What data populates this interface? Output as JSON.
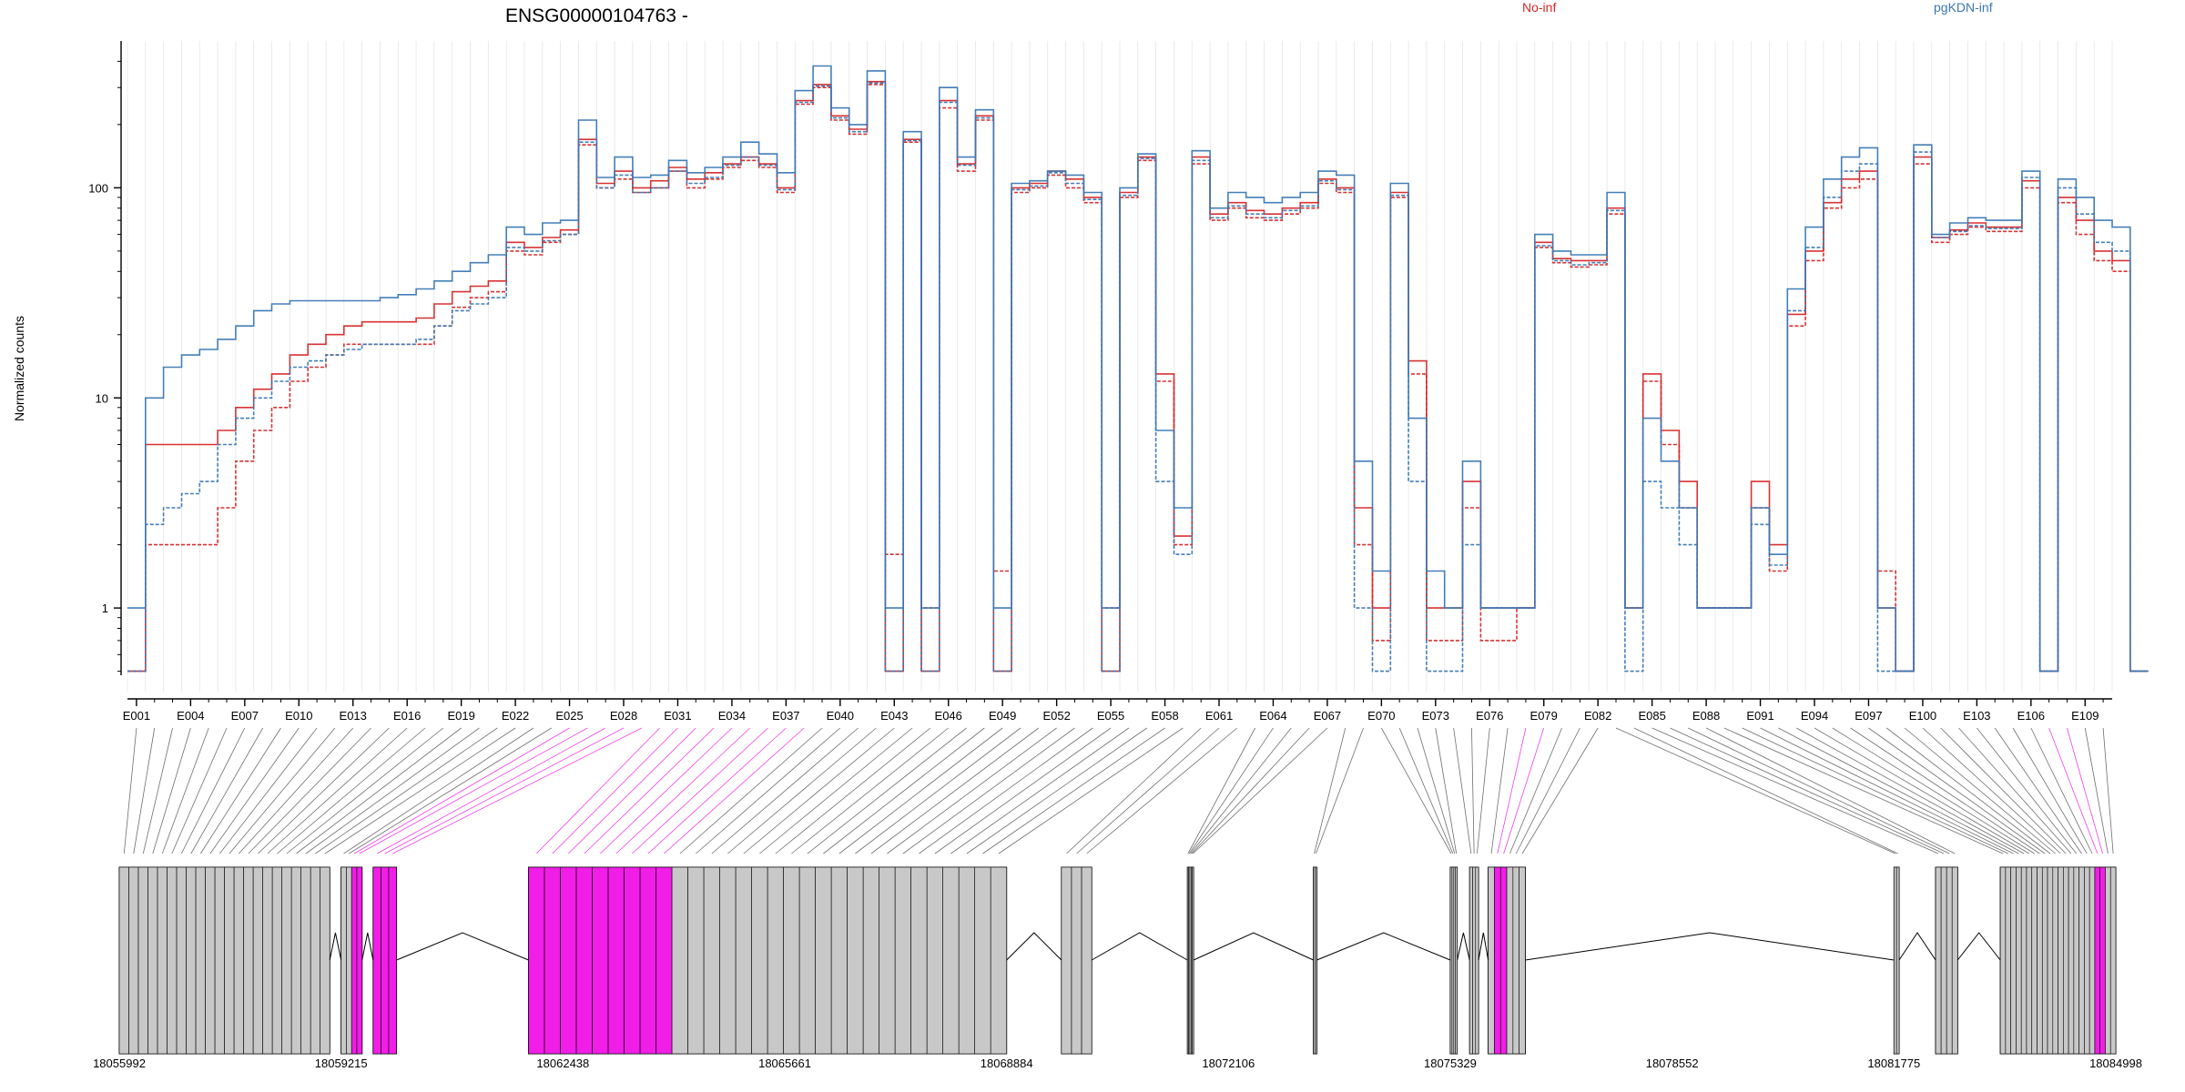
{
  "title": "ENSG00000104763 -",
  "legend": [
    {
      "name": "No-inf",
      "color": "#d62728"
    },
    {
      "name": "pgKDN-inf",
      "color": "#3a78b5"
    }
  ],
  "ylabel": "Normalized counts",
  "colors": {
    "highlight": "#f01ee6",
    "exon_gray": "#c8c8c8",
    "grid": "#e6e6e6"
  },
  "chart_data": {
    "type": "line",
    "title": "ENSG00000104763 -",
    "ylabel": "Normalized counts",
    "yscale": "log",
    "yticks": [
      1,
      10,
      100
    ],
    "ytick_labels": [
      "1",
      "10",
      "100"
    ],
    "ylim": [
      0.4,
      500
    ],
    "exon_count": 110,
    "exon_tick_labels": [
      "E001",
      "E004",
      "E007",
      "E010",
      "E013",
      "E016",
      "E019",
      "E022",
      "E025",
      "E028",
      "E031",
      "E034",
      "E037",
      "E040",
      "E043",
      "E046",
      "E049",
      "E052",
      "E055",
      "E058",
      "E061",
      "E064",
      "E067",
      "E070",
      "E073",
      "E076",
      "E079",
      "E082",
      "E085",
      "E088",
      "E091",
      "E094",
      "E097",
      "E100",
      "E103",
      "E106",
      "E109"
    ],
    "highlighted_exons": [
      24,
      25,
      26,
      27,
      28,
      29,
      30,
      31,
      32,
      33,
      34,
      35,
      36,
      37,
      77,
      78,
      106,
      107
    ],
    "genomic_axis": {
      "start": 18055992,
      "end": 18084998,
      "tick_labels": [
        "18055992",
        "18059215",
        "18062438",
        "18065661",
        "18068884",
        "18072106",
        "18075329",
        "18078552",
        "18081775",
        "18084998"
      ]
    },
    "series": [
      {
        "name": "No-inf",
        "group": "No-inf",
        "color": "#d62728",
        "values": [
          0.5,
          6,
          6,
          6,
          6,
          7,
          9,
          11,
          13,
          16,
          18,
          20,
          22,
          23,
          23,
          23,
          24,
          28,
          32,
          34,
          36,
          55,
          52,
          58,
          63,
          170,
          105,
          120,
          100,
          108,
          125,
          110,
          118,
          130,
          140,
          130,
          100,
          260,
          310,
          220,
          190,
          320,
          0.5,
          170,
          0.5,
          260,
          130,
          220,
          0.5,
          100,
          105,
          120,
          110,
          90,
          0.5,
          95,
          140,
          13,
          2.2,
          140,
          75,
          85,
          78,
          75,
          80,
          85,
          110,
          100,
          3,
          1,
          95,
          15,
          1,
          1,
          4,
          1,
          1,
          1,
          55,
          46,
          45,
          45,
          80,
          1,
          13,
          7,
          4,
          1,
          1,
          1,
          4,
          2,
          25,
          50,
          85,
          110,
          120,
          1,
          0.5,
          140,
          58,
          63,
          68,
          65,
          65,
          108,
          0.5,
          90,
          70,
          50,
          45,
          0.5
        ]
      },
      {
        "name": "No-inf",
        "group": "No-inf",
        "color": "#d62728",
        "values": [
          0.5,
          2,
          2,
          2,
          2,
          3,
          5,
          7,
          9,
          12,
          14,
          16,
          18,
          18,
          18,
          18,
          18,
          22,
          27,
          30,
          32,
          50,
          48,
          55,
          60,
          160,
          100,
          110,
          95,
          100,
          120,
          100,
          110,
          125,
          135,
          125,
          95,
          250,
          300,
          210,
          180,
          310,
          1.8,
          165,
          1,
          240,
          120,
          210,
          1.5,
          95,
          100,
          115,
          100,
          85,
          1,
          90,
          135,
          12,
          2,
          130,
          70,
          80,
          72,
          70,
          75,
          80,
          105,
          95,
          2,
          0.7,
          90,
          13,
          0.7,
          0.7,
          3,
          0.7,
          0.7,
          1,
          52,
          44,
          42,
          43,
          75,
          1,
          12,
          6,
          3,
          1,
          1,
          1,
          3,
          1.5,
          22,
          45,
          80,
          100,
          110,
          1.5,
          0.5,
          130,
          55,
          60,
          65,
          62,
          62,
          100,
          0.5,
          85,
          60,
          45,
          40,
          0.5
        ]
      },
      {
        "name": "pgKDN-inf",
        "group": "pgKDN-inf",
        "color": "#3a78b5",
        "values": [
          1,
          10,
          14,
          16,
          17,
          19,
          22,
          26,
          28,
          29,
          29,
          29,
          29,
          29,
          30,
          31,
          33,
          36,
          40,
          44,
          48,
          65,
          60,
          68,
          70,
          210,
          112,
          140,
          112,
          115,
          135,
          118,
          125,
          140,
          165,
          145,
          118,
          290,
          380,
          240,
          200,
          360,
          1,
          185,
          1,
          300,
          140,
          235,
          1,
          105,
          108,
          120,
          115,
          95,
          1,
          100,
          145,
          7,
          3,
          150,
          80,
          95,
          90,
          85,
          90,
          95,
          120,
          115,
          5,
          1.5,
          105,
          8,
          1.5,
          1,
          5,
          1,
          1,
          1,
          60,
          50,
          48,
          48,
          95,
          1,
          8,
          5,
          3,
          1,
          1,
          1,
          3,
          1.8,
          33,
          65,
          110,
          140,
          155,
          1,
          0.5,
          160,
          60,
          68,
          72,
          70,
          70,
          120,
          0.5,
          110,
          90,
          70,
          65,
          0.5
        ]
      },
      {
        "name": "pgKDN-inf",
        "group": "pgKDN-inf",
        "color": "#3a78b5",
        "values": [
          0.5,
          2.5,
          3,
          3.5,
          4,
          6,
          8,
          10,
          12,
          14,
          15,
          16,
          17,
          18,
          18,
          18,
          19,
          22,
          26,
          28,
          30,
          52,
          50,
          56,
          60,
          165,
          100,
          115,
          95,
          100,
          120,
          105,
          112,
          128,
          140,
          128,
          98,
          255,
          305,
          215,
          185,
          315,
          0.5,
          168,
          0.5,
          255,
          128,
          215,
          0.5,
          98,
          102,
          118,
          105,
          88,
          0.5,
          92,
          138,
          4,
          1.8,
          135,
          72,
          82,
          75,
          72,
          78,
          82,
          108,
          98,
          1,
          0.5,
          92,
          4,
          0.5,
          0.5,
          2,
          1,
          1,
          1,
          53,
          45,
          43,
          44,
          78,
          0.5,
          4,
          3,
          2,
          1,
          1,
          1,
          2.5,
          1.6,
          26,
          52,
          90,
          120,
          130,
          0.5,
          0.5,
          148,
          58,
          62,
          66,
          64,
          64,
          112,
          0.5,
          100,
          75,
          55,
          50,
          0.5
        ]
      }
    ]
  }
}
